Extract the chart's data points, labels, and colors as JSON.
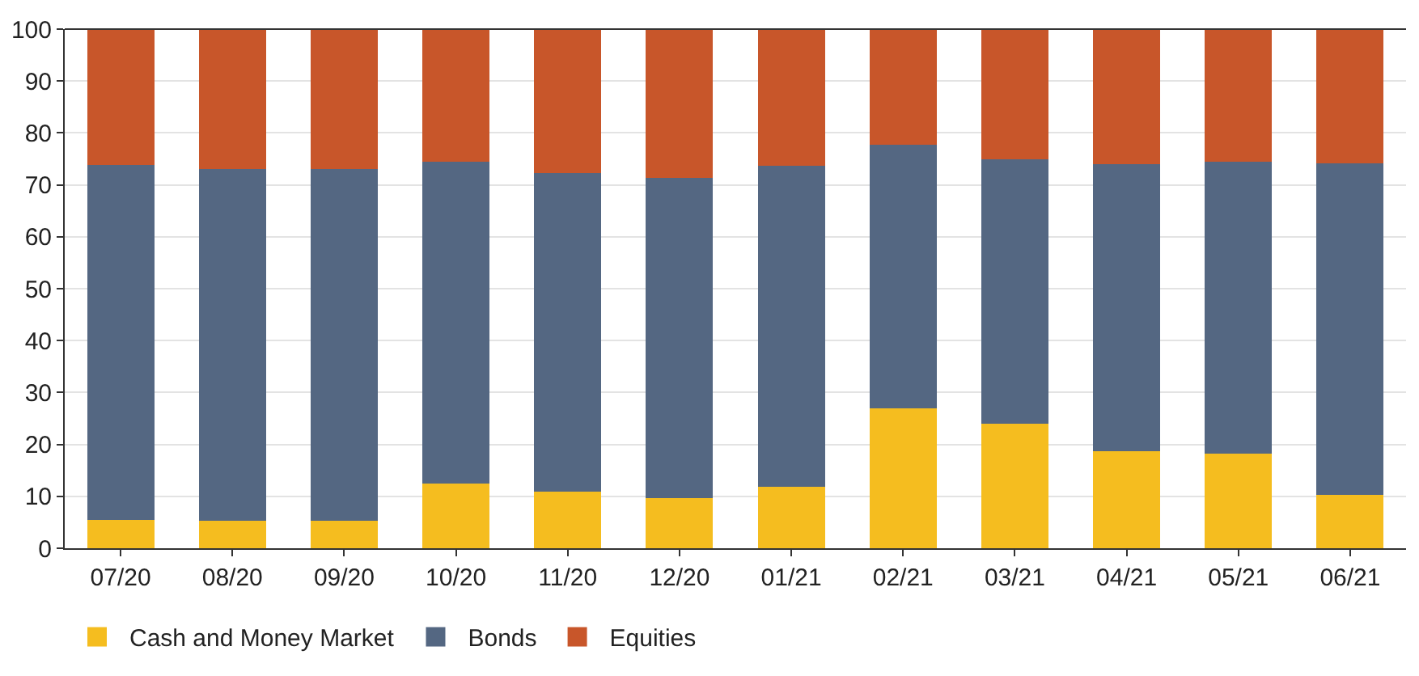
{
  "chart_data": {
    "type": "bar",
    "stacked": true,
    "categories": [
      "07/20",
      "08/20",
      "09/20",
      "10/20",
      "11/20",
      "12/20",
      "01/21",
      "02/21",
      "03/21",
      "04/21",
      "05/21",
      "06/21"
    ],
    "series": [
      {
        "name": "Cash and Money Market",
        "color": "#f5bd1f",
        "values": [
          5.5,
          5.3,
          5.3,
          12.5,
          10.9,
          9.6,
          11.8,
          27.0,
          24.0,
          18.7,
          18.2,
          10.3
        ]
      },
      {
        "name": "Bonds",
        "color": "#546782",
        "values": [
          68.4,
          67.8,
          67.8,
          61.9,
          61.3,
          61.8,
          61.8,
          50.8,
          50.9,
          55.3,
          56.3,
          63.9
        ]
      },
      {
        "name": "Equities",
        "color": "#c8562a",
        "values": [
          26.1,
          26.9,
          26.9,
          25.6,
          27.8,
          28.6,
          26.4,
          22.2,
          25.1,
          26.0,
          25.5,
          25.8
        ]
      }
    ],
    "ylim": [
      0,
      100
    ],
    "yticks": [
      0,
      10,
      20,
      30,
      40,
      50,
      60,
      70,
      80,
      90,
      100
    ],
    "grid": "y",
    "legend": "bottom left"
  }
}
